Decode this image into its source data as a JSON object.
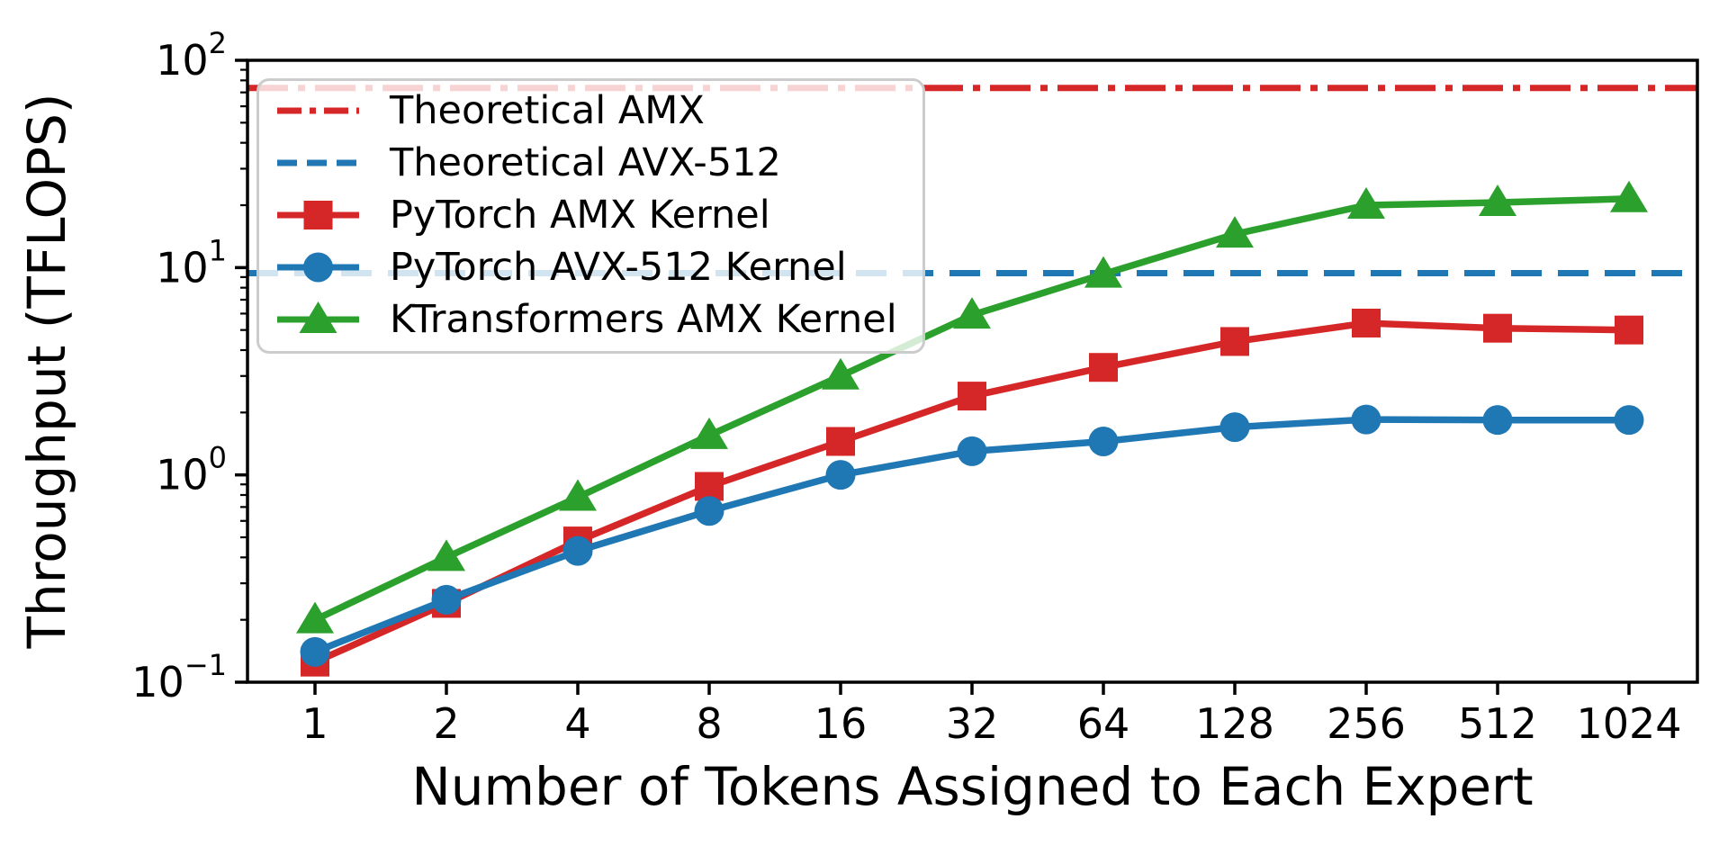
{
  "chart_data": {
    "type": "line",
    "title": "",
    "xlabel": "Number of Tokens Assigned to Each Expert",
    "ylabel": "Throughput (TFLOPS)",
    "x_scale": "log2",
    "y_scale": "log10",
    "ylim": [
      0.1,
      100
    ],
    "grid": false,
    "legend_position": "upper left",
    "x_categories": [
      1,
      2,
      4,
      8,
      16,
      32,
      64,
      128,
      256,
      512,
      1024
    ],
    "x_tick_labels": [
      "1",
      "2",
      "4",
      "8",
      "16",
      "32",
      "64",
      "128",
      "256",
      "512",
      "1024"
    ],
    "y_ticks": [
      {
        "value": 100,
        "base": "10",
        "exp": "2"
      },
      {
        "value": 10,
        "base": "10",
        "exp": "1"
      },
      {
        "value": 1,
        "base": "10",
        "exp": "0"
      },
      {
        "value": 0.1,
        "base": "10",
        "exp": "−1"
      }
    ],
    "hlines": [
      {
        "name": "Theoretical AMX",
        "value": 73.5,
        "color": "#d62728",
        "style": "dashdot"
      },
      {
        "name": "Theoretical AVX-512",
        "value": 9.4,
        "color": "#1f77b4",
        "style": "dashed"
      }
    ],
    "series": [
      {
        "name": "PyTorch AMX Kernel",
        "color": "#d62728",
        "marker": "square",
        "values": [
          0.125,
          0.24,
          0.48,
          0.88,
          1.45,
          2.4,
          3.3,
          4.4,
          5.4,
          5.1,
          5.0
        ]
      },
      {
        "name": "PyTorch AVX-512 Kernel",
        "color": "#1f77b4",
        "marker": "circle",
        "values": [
          0.14,
          0.25,
          0.43,
          0.67,
          1.0,
          1.3,
          1.45,
          1.7,
          1.85,
          1.84,
          1.84
        ]
      },
      {
        "name": "KTransformers AMX Kernel",
        "color": "#2ca02c",
        "marker": "triangle",
        "values": [
          0.2,
          0.4,
          0.78,
          1.55,
          3.0,
          5.9,
          9.3,
          14.5,
          20.0,
          20.6,
          21.5
        ]
      }
    ],
    "legend": [
      {
        "label": "Theoretical AMX",
        "color": "#d62728",
        "line": "dashdot",
        "marker": "none"
      },
      {
        "label": "Theoretical AVX-512",
        "color": "#1f77b4",
        "line": "dashed",
        "marker": "none"
      },
      {
        "label": "PyTorch AMX Kernel",
        "color": "#d62728",
        "line": "solid",
        "marker": "square"
      },
      {
        "label": "PyTorch AVX-512 Kernel",
        "color": "#1f77b4",
        "line": "solid",
        "marker": "circle"
      },
      {
        "label": "KTransformers AMX Kernel",
        "color": "#2ca02c",
        "line": "solid",
        "marker": "triangle"
      }
    ],
    "axis_color": "#000000"
  }
}
